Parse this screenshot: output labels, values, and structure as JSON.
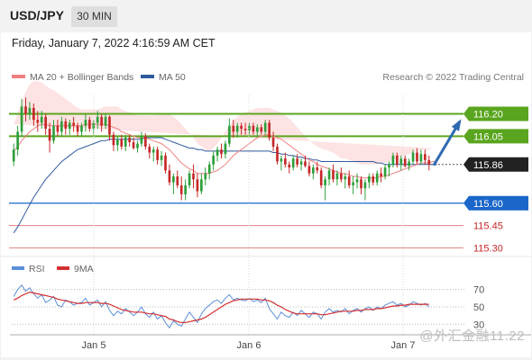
{
  "header": {
    "pair": "USD/JPY",
    "timeframe": "30 MIN"
  },
  "timestamp": "Friday, January 7, 2022 4:16:59 AM CET",
  "legend": {
    "ma20_label": "MA 20 + Bollinger Bands",
    "ma50_label": "MA 50",
    "credit": "Research © 2022 Trading Central"
  },
  "rsi_legend": {
    "rsi_label": "RSI",
    "ma_label": "9MA"
  },
  "watermark": "@外汇金融11.22",
  "colors": {
    "ma20": "#f08080",
    "ma50": "#2f5a9e",
    "bull": "#2e9e3a",
    "bear": "#c62828",
    "resistance": "#5aa51f",
    "support": "#1a66c9",
    "target_line": "#e08080",
    "band_fill": "#fde3e3",
    "arrow": "#2f6bb0",
    "rsi": "#5b8fd6",
    "rsi_ma": "#d32f2f"
  },
  "chart_data": {
    "type": "candlestick",
    "title": "USD/JPY",
    "timeframe": "30 MIN",
    "x_ticks": [
      "Jan 5",
      "Jan 6",
      "Jan 7"
    ],
    "ylim": [
      115.26,
      116.3
    ],
    "last_price": 115.86,
    "levels": [
      {
        "value": 116.2,
        "label": "116.20",
        "kind": "resistance"
      },
      {
        "value": 116.05,
        "label": "116.05",
        "kind": "resistance"
      },
      {
        "value": 115.86,
        "label": "115.86",
        "kind": "last"
      },
      {
        "value": 115.6,
        "label": "115.60",
        "kind": "support"
      },
      {
        "value": 115.45,
        "label": "115.45",
        "kind": "target"
      },
      {
        "value": 115.3,
        "label": "115.30",
        "kind": "target"
      }
    ],
    "candles": [
      [
        115.88,
        116.0,
        115.85,
        115.96
      ],
      [
        115.96,
        116.12,
        115.92,
        116.08
      ],
      [
        116.08,
        116.3,
        116.05,
        116.25
      ],
      [
        116.25,
        116.31,
        116.15,
        116.2
      ],
      [
        116.2,
        116.28,
        116.16,
        116.24
      ],
      [
        116.24,
        116.27,
        116.12,
        116.16
      ],
      [
        116.16,
        116.22,
        116.08,
        116.14
      ],
      [
        116.14,
        116.22,
        116.1,
        116.18
      ],
      [
        116.18,
        116.2,
        116.06,
        116.1
      ],
      [
        116.1,
        116.14,
        115.94,
        116.02
      ],
      [
        116.02,
        116.16,
        116.0,
        116.12
      ],
      [
        116.12,
        116.16,
        116.05,
        116.08
      ],
      [
        116.08,
        116.18,
        116.05,
        116.15
      ],
      [
        116.15,
        116.17,
        116.06,
        116.1
      ],
      [
        116.1,
        116.16,
        116.06,
        116.14
      ],
      [
        116.14,
        116.18,
        116.08,
        116.12
      ],
      [
        116.12,
        116.14,
        116.05,
        116.08
      ],
      [
        116.08,
        116.14,
        116.05,
        116.12
      ],
      [
        116.12,
        116.2,
        116.08,
        116.16
      ],
      [
        116.16,
        116.18,
        116.08,
        116.1
      ],
      [
        116.1,
        116.16,
        116.06,
        116.14
      ],
      [
        116.14,
        116.22,
        116.1,
        116.18
      ],
      [
        116.18,
        116.2,
        116.08,
        116.12
      ],
      [
        116.12,
        116.2,
        116.1,
        116.18
      ],
      [
        116.18,
        116.19,
        116.02,
        116.06
      ],
      [
        116.06,
        116.08,
        115.95,
        115.99
      ],
      [
        115.99,
        116.05,
        115.95,
        116.03
      ],
      [
        116.03,
        116.06,
        115.96,
        115.98
      ],
      [
        115.98,
        116.06,
        115.95,
        116.04
      ],
      [
        116.04,
        116.06,
        115.98,
        116.01
      ],
      [
        116.01,
        116.04,
        115.96,
        115.97
      ],
      [
        115.97,
        116.02,
        115.94,
        116.0
      ],
      [
        116.0,
        116.08,
        115.98,
        116.05
      ],
      [
        116.05,
        116.07,
        115.96,
        115.98
      ],
      [
        115.98,
        116.0,
        115.9,
        115.94
      ],
      [
        115.94,
        115.98,
        115.88,
        115.96
      ],
      [
        115.96,
        115.98,
        115.86,
        115.89
      ],
      [
        115.89,
        115.95,
        115.85,
        115.92
      ],
      [
        115.92,
        115.94,
        115.8,
        115.82
      ],
      [
        115.82,
        115.86,
        115.72,
        115.74
      ],
      [
        115.74,
        115.8,
        115.66,
        115.78
      ],
      [
        115.78,
        115.82,
        115.7,
        115.72
      ],
      [
        115.72,
        115.78,
        115.62,
        115.66
      ],
      [
        115.66,
        115.76,
        115.62,
        115.72
      ],
      [
        115.72,
        115.82,
        115.7,
        115.8
      ],
      [
        115.8,
        115.86,
        115.7,
        115.76
      ],
      [
        115.76,
        115.8,
        115.64,
        115.68
      ],
      [
        115.68,
        115.8,
        115.66,
        115.76
      ],
      [
        115.76,
        115.84,
        115.72,
        115.8
      ],
      [
        115.8,
        115.88,
        115.76,
        115.86
      ],
      [
        115.86,
        115.95,
        115.82,
        115.92
      ],
      [
        115.92,
        115.98,
        115.88,
        115.96
      ],
      [
        115.96,
        116.0,
        115.9,
        115.93
      ],
      [
        115.93,
        116.02,
        115.9,
        116.0
      ],
      [
        116.0,
        116.17,
        115.98,
        116.12
      ],
      [
        116.12,
        116.16,
        116.04,
        116.08
      ],
      [
        116.08,
        116.14,
        116.04,
        116.12
      ],
      [
        116.12,
        116.14,
        116.06,
        116.1
      ],
      [
        116.1,
        116.14,
        116.06,
        116.09
      ],
      [
        116.09,
        116.14,
        116.06,
        116.12
      ],
      [
        116.12,
        116.14,
        116.06,
        116.08
      ],
      [
        116.08,
        116.13,
        116.05,
        116.11
      ],
      [
        116.11,
        116.13,
        116.06,
        116.08
      ],
      [
        116.08,
        116.16,
        116.06,
        116.14
      ],
      [
        116.14,
        116.16,
        116.02,
        116.04
      ],
      [
        116.04,
        116.08,
        115.95,
        115.98
      ],
      [
        115.98,
        116.0,
        115.86,
        115.88
      ],
      [
        115.88,
        115.92,
        115.82,
        115.9
      ],
      [
        115.9,
        115.94,
        115.84,
        115.86
      ],
      [
        115.86,
        115.88,
        115.8,
        115.84
      ],
      [
        115.84,
        115.92,
        115.82,
        115.9
      ],
      [
        115.9,
        115.93,
        115.84,
        115.86
      ],
      [
        115.86,
        115.9,
        115.82,
        115.88
      ],
      [
        115.88,
        115.92,
        115.84,
        115.85
      ],
      [
        115.85,
        115.88,
        115.78,
        115.8
      ],
      [
        115.8,
        115.86,
        115.76,
        115.84
      ],
      [
        115.84,
        115.88,
        115.8,
        115.82
      ],
      [
        115.82,
        115.84,
        115.7,
        115.72
      ],
      [
        115.72,
        115.78,
        115.62,
        115.76
      ],
      [
        115.76,
        115.84,
        115.72,
        115.82
      ],
      [
        115.82,
        115.86,
        115.74,
        115.76
      ],
      [
        115.76,
        115.82,
        115.72,
        115.8
      ],
      [
        115.8,
        115.84,
        115.74,
        115.76
      ],
      [
        115.76,
        115.8,
        115.7,
        115.78
      ],
      [
        115.78,
        115.82,
        115.7,
        115.72
      ],
      [
        115.72,
        115.78,
        115.66,
        115.74
      ],
      [
        115.74,
        115.8,
        115.7,
        115.76
      ],
      [
        115.76,
        115.78,
        115.66,
        115.7
      ],
      [
        115.7,
        115.76,
        115.62,
        115.74
      ],
      [
        115.74,
        115.8,
        115.7,
        115.78
      ],
      [
        115.78,
        115.8,
        115.72,
        115.74
      ],
      [
        115.74,
        115.82,
        115.72,
        115.8
      ],
      [
        115.8,
        115.84,
        115.74,
        115.78
      ],
      [
        115.78,
        115.86,
        115.76,
        115.84
      ],
      [
        115.84,
        115.88,
        115.78,
        115.86
      ],
      [
        115.86,
        115.94,
        115.84,
        115.92
      ],
      [
        115.92,
        115.94,
        115.84,
        115.86
      ],
      [
        115.86,
        115.92,
        115.82,
        115.9
      ],
      [
        115.9,
        115.92,
        115.84,
        115.85
      ],
      [
        115.85,
        115.9,
        115.82,
        115.88
      ],
      [
        115.88,
        115.96,
        115.86,
        115.94
      ],
      [
        115.94,
        115.97,
        115.86,
        115.88
      ],
      [
        115.88,
        115.96,
        115.86,
        115.93
      ],
      [
        115.93,
        115.96,
        115.86,
        115.89
      ],
      [
        115.89,
        115.92,
        115.82,
        115.86
      ]
    ],
    "ma20": [
      115.95,
      115.98,
      116.02,
      116.05,
      116.08,
      116.1,
      116.12,
      116.13,
      116.13,
      116.12,
      116.12,
      116.12,
      116.12,
      116.12,
      116.12,
      116.12,
      116.12,
      116.12,
      116.13,
      116.13,
      116.13,
      116.13,
      116.13,
      116.13,
      116.12,
      116.11,
      116.1,
      116.08,
      116.07,
      116.06,
      116.05,
      116.04,
      116.04,
      116.04,
      116.03,
      116.02,
      116.01,
      116.0,
      115.98,
      115.96,
      115.93,
      115.9,
      115.87,
      115.85,
      115.83,
      115.82,
      115.8,
      115.8,
      115.8,
      115.8,
      115.81,
      115.82,
      115.84,
      115.86,
      115.89,
      115.92,
      115.94,
      115.96,
      115.98,
      116.0,
      116.02,
      116.04,
      116.05,
      116.06,
      116.06,
      116.05,
      116.04,
      116.03,
      116.01,
      115.99,
      115.97,
      115.95,
      115.93,
      115.91,
      115.89,
      115.88,
      115.86,
      115.85,
      115.84,
      115.83,
      115.82,
      115.81,
      115.8,
      115.8,
      115.79,
      115.78,
      115.78,
      115.77,
      115.77,
      115.77,
      115.77,
      115.77,
      115.78,
      115.78,
      115.79,
      115.8,
      115.81,
      115.82,
      115.83,
      115.84,
      115.85,
      115.86,
      115.87,
      115.87,
      115.87,
      115.88,
      115.88
    ],
    "ma50": [
      115.4,
      115.44,
      115.49,
      115.54,
      115.59,
      115.64,
      115.68,
      115.72,
      115.76,
      115.79,
      115.82,
      115.85,
      115.88,
      115.9,
      115.92,
      115.94,
      115.96,
      115.97,
      115.98,
      115.99,
      116.0,
      116.01,
      116.02,
      116.02,
      116.03,
      116.03,
      116.03,
      116.03,
      116.03,
      116.03,
      116.03,
      116.03,
      116.03,
      116.04,
      116.04,
      116.04,
      116.04,
      116.04,
      116.03,
      116.02,
      116.01,
      116.0,
      115.99,
      115.98,
      115.97,
      115.97,
      115.96,
      115.96,
      115.95,
      115.95,
      115.95,
      115.95,
      115.95,
      115.95,
      115.95,
      115.95,
      115.95,
      115.95,
      115.95,
      115.95,
      115.95,
      115.95,
      115.95,
      115.95,
      115.95,
      115.94,
      115.94,
      115.93,
      115.93,
      115.92,
      115.92,
      115.91,
      115.91,
      115.9,
      115.9,
      115.89,
      115.89,
      115.88,
      115.88,
      115.88,
      115.88,
      115.88,
      115.88,
      115.88,
      115.88,
      115.88,
      115.88,
      115.88,
      115.88,
      115.88,
      115.88,
      115.87,
      115.87,
      115.86,
      115.86,
      115.86,
      115.86,
      115.86,
      115.86,
      115.86,
      115.86,
      115.86,
      115.86,
      115.86,
      115.86,
      115.86,
      115.86
    ],
    "band_width": [
      0.18,
      0.22,
      0.26,
      0.3,
      0.32,
      0.32,
      0.3,
      0.28,
      0.26,
      0.25,
      0.24,
      0.22,
      0.2,
      0.18,
      0.16,
      0.14,
      0.12,
      0.11,
      0.1,
      0.1,
      0.1,
      0.1,
      0.11,
      0.12,
      0.13,
      0.14,
      0.15,
      0.15,
      0.15,
      0.15,
      0.15,
      0.15,
      0.15,
      0.15,
      0.16,
      0.17,
      0.18,
      0.2,
      0.22,
      0.24,
      0.25,
      0.26,
      0.26,
      0.25,
      0.24,
      0.22,
      0.2,
      0.18,
      0.16,
      0.15,
      0.16,
      0.18,
      0.2,
      0.22,
      0.23,
      0.24,
      0.24,
      0.24,
      0.23,
      0.22,
      0.21,
      0.2,
      0.19,
      0.18,
      0.18,
      0.18,
      0.18,
      0.18,
      0.18,
      0.18,
      0.17,
      0.16,
      0.15,
      0.14,
      0.13,
      0.12,
      0.12,
      0.12,
      0.12,
      0.12,
      0.12,
      0.11,
      0.1,
      0.1,
      0.1,
      0.1,
      0.09,
      0.09,
      0.09,
      0.09,
      0.09,
      0.09,
      0.09,
      0.09,
      0.09,
      0.09,
      0.09,
      0.09,
      0.09,
      0.09,
      0.09,
      0.09,
      0.09,
      0.09,
      0.09,
      0.09
    ],
    "rsi": {
      "ylim": [
        20,
        80
      ],
      "levels": [
        70,
        50,
        30
      ],
      "rsi": [
        62,
        70,
        75,
        68,
        72,
        65,
        60,
        64,
        55,
        58,
        62,
        52,
        50,
        58,
        56,
        52,
        54,
        55,
        60,
        52,
        55,
        58,
        50,
        56,
        46,
        40,
        45,
        42,
        48,
        44,
        40,
        44,
        50,
        42,
        38,
        44,
        36,
        40,
        32,
        26,
        34,
        30,
        28,
        36,
        44,
        38,
        32,
        42,
        48,
        52,
        56,
        58,
        54,
        60,
        64,
        58,
        60,
        58,
        57,
        60,
        56,
        58,
        55,
        60,
        48,
        42,
        36,
        44,
        40,
        38,
        44,
        40,
        46,
        42,
        38,
        44,
        42,
        36,
        44,
        48,
        44,
        46,
        44,
        48,
        42,
        46,
        48,
        44,
        48,
        50,
        46,
        50,
        48,
        52,
        54,
        56,
        52,
        54,
        50,
        52,
        56,
        54,
        52,
        54,
        50
      ],
      "ma": [
        58,
        60,
        63,
        65,
        67,
        66,
        65,
        64,
        63,
        62,
        61,
        59,
        58,
        57,
        56,
        55,
        54,
        54,
        55,
        55,
        55,
        55,
        54,
        54,
        53,
        51,
        49,
        47,
        46,
        45,
        44,
        44,
        44,
        43,
        42,
        42,
        41,
        40,
        39,
        36,
        35,
        33,
        32,
        32,
        33,
        34,
        35,
        36,
        38,
        41,
        44,
        47,
        50,
        53,
        55,
        57,
        58,
        59,
        59,
        59,
        59,
        59,
        58,
        58,
        57,
        55,
        52,
        50,
        47,
        45,
        43,
        42,
        42,
        42,
        42,
        42,
        42,
        41,
        41,
        42,
        43,
        44,
        45,
        45,
        45,
        45,
        46,
        46,
        47,
        47,
        47,
        48,
        48,
        49,
        50,
        51,
        51,
        52,
        52,
        53,
        53,
        53,
        53,
        53,
        53
      ]
    },
    "projection_to": 116.15
  }
}
